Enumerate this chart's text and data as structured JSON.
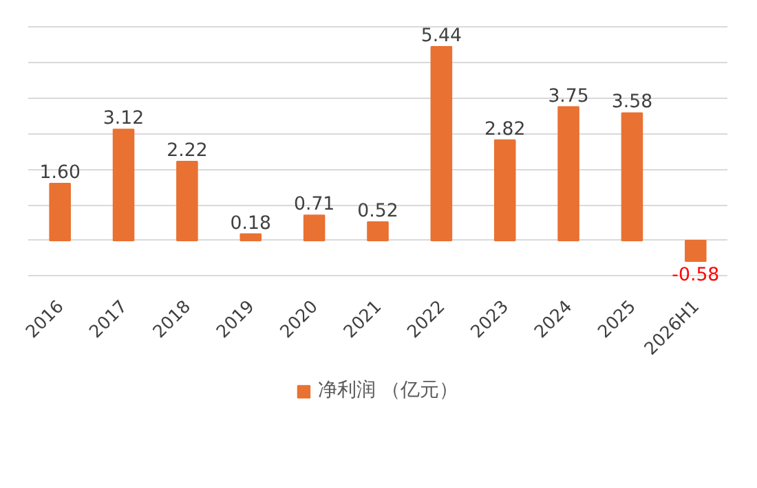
{
  "chart_data": {
    "type": "bar",
    "categories": [
      "2016",
      "2017",
      "2018",
      "2019",
      "2020",
      "2021",
      "2022",
      "2023",
      "2024",
      "2025",
      "2026H1"
    ],
    "series": [
      {
        "name": "净利润 （亿元）",
        "color": "#e97132",
        "values": [
          1.6,
          3.12,
          2.22,
          0.18,
          0.71,
          0.52,
          5.44,
          2.82,
          3.75,
          3.58,
          -0.58
        ],
        "value_labels": [
          "1.60",
          "3.12",
          "2.22",
          "0.18",
          "0.71",
          "0.52",
          "5.44",
          "2.82",
          "3.75",
          "3.58",
          "-0.58"
        ]
      }
    ],
    "grid": "y",
    "legend": "bottom",
    "tick_labels": "x"
  }
}
